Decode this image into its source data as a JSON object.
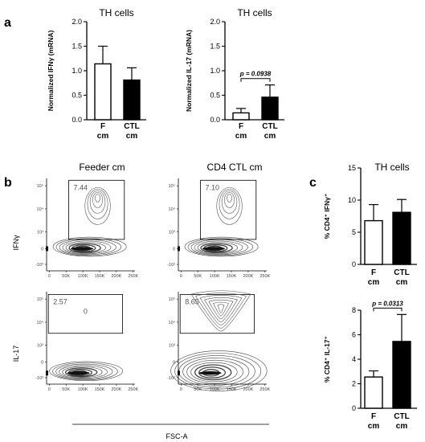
{
  "panel_letters": {
    "a": "a",
    "b": "b",
    "c": "c"
  },
  "chart_data": [
    {
      "id": "a-ifng",
      "type": "bar",
      "title": "TH cells",
      "ylabel": "Normalized IFNγ (mRNA)",
      "categories": [
        [
          "F",
          "cm"
        ],
        [
          "CTL",
          "cm"
        ]
      ],
      "values": [
        1.14,
        0.81
      ],
      "errors": [
        0.36,
        0.25
      ],
      "fills": [
        "#ffffff",
        "#000000"
      ],
      "ylim": [
        0,
        2.0
      ],
      "yticks": [
        "0.0",
        "0.5",
        "1.0",
        "1.5",
        "2.0"
      ],
      "ytick_values": [
        0,
        0.5,
        1.0,
        1.5,
        2.0
      ]
    },
    {
      "id": "a-il17",
      "type": "bar",
      "title": "TH cells",
      "ylabel": "Normalized IL-17 (mRNA)",
      "categories": [
        [
          "F",
          "cm"
        ],
        [
          "CTL",
          "cm"
        ]
      ],
      "values": [
        0.14,
        0.46
      ],
      "errors": [
        0.09,
        0.25
      ],
      "fills": [
        "#ffffff",
        "#000000"
      ],
      "ylim": [
        0,
        2.0
      ],
      "yticks": [
        "0.0",
        "0.5",
        "1.0",
        "1.5",
        "2.0"
      ],
      "ytick_values": [
        0,
        0.5,
        1.0,
        1.5,
        2.0
      ],
      "annotation": "p = 0.0938"
    },
    {
      "id": "c-ifng",
      "type": "bar",
      "title": "TH cells",
      "ylabel": "% CD4⁺ IFNγ⁺",
      "categories": [
        [
          "F",
          "cm"
        ],
        [
          "CTL",
          "cm"
        ]
      ],
      "values": [
        6.8,
        8.1
      ],
      "errors": [
        2.5,
        2.0
      ],
      "fills": [
        "#ffffff",
        "#000000"
      ],
      "ylim": [
        0,
        15
      ],
      "yticks": [
        "0",
        "5",
        "10",
        "15"
      ],
      "ytick_values": [
        0,
        5,
        10,
        15
      ]
    },
    {
      "id": "c-il17",
      "type": "bar",
      "title": "",
      "ylabel": "% CD4⁺ IL-17⁺",
      "categories": [
        [
          "F",
          "cm"
        ],
        [
          "CTL",
          "cm"
        ]
      ],
      "values": [
        2.55,
        5.45
      ],
      "errors": [
        0.5,
        2.2
      ],
      "fills": [
        "#ffffff",
        "#000000"
      ],
      "ylim": [
        0,
        8
      ],
      "yticks": [
        "0",
        "2",
        "4",
        "6",
        "8"
      ],
      "ytick_values": [
        0,
        2,
        4,
        6,
        8
      ],
      "annotation": "p = 0.0313"
    },
    {
      "id": "b-flow",
      "type": "contour",
      "column_titles": [
        "Feeder cm",
        "CD4 CTL cm"
      ],
      "row_labels": [
        "IFNγ",
        "IL-17"
      ],
      "xlabel": "FSC-A",
      "xticks": [
        "0",
        "50K",
        "100K",
        "150K",
        "200K",
        "250K"
      ],
      "yticks": [
        "10⁵",
        "10⁴",
        "10³",
        "0",
        "-10³"
      ],
      "gate_percentages": [
        [
          "7.44",
          "7.10"
        ],
        [
          "2.57",
          "8.65"
        ]
      ],
      "stray_label": "0"
    }
  ]
}
